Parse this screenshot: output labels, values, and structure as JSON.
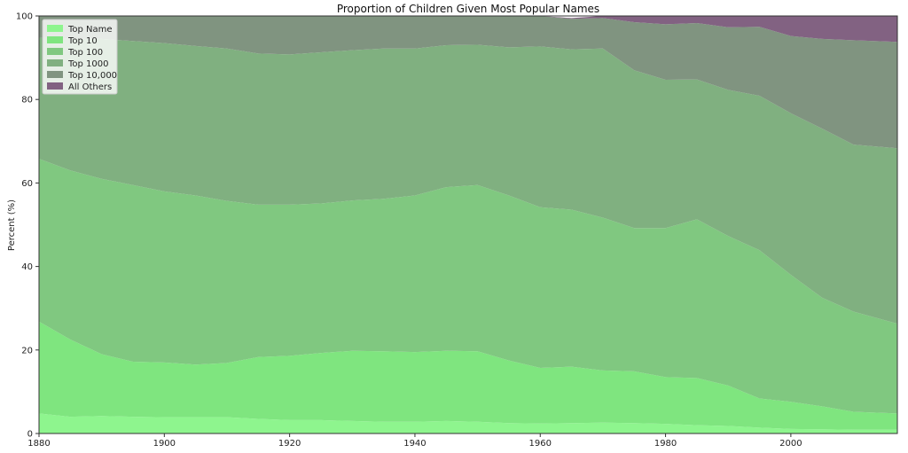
{
  "chart_data": {
    "type": "area",
    "stacked": true,
    "title": "Proportion of Children Given Most Popular Names",
    "xlabel": "",
    "ylabel": "Percent (%)",
    "xlim": [
      1880,
      2017
    ],
    "ylim": [
      0,
      100
    ],
    "x_ticks": [
      1880,
      1900,
      1920,
      1940,
      1960,
      1980,
      2000
    ],
    "y_ticks": [
      0,
      20,
      40,
      60,
      80,
      100
    ],
    "grid": false,
    "legend_position": "top-left",
    "x": [
      1880,
      1885,
      1890,
      1895,
      1900,
      1905,
      1910,
      1915,
      1920,
      1925,
      1930,
      1935,
      1940,
      1945,
      1950,
      1955,
      1960,
      1965,
      1970,
      1975,
      1980,
      1985,
      1990,
      1995,
      2000,
      2005,
      2010,
      2017
    ],
    "series": [
      {
        "name": "Top Name",
        "color": "#8ef58e",
        "values": [
          4.8,
          4.0,
          4.2,
          4.0,
          3.9,
          3.9,
          3.9,
          3.5,
          3.2,
          3.2,
          3.0,
          2.8,
          2.8,
          3.0,
          2.8,
          2.5,
          2.4,
          2.5,
          2.6,
          2.5,
          2.3,
          2.0,
          1.8,
          1.4,
          1.1,
          1.0,
          0.9,
          0.9
        ]
      },
      {
        "name": "Top 10",
        "color": "#7fe57f",
        "values": [
          22.0,
          18.5,
          14.8,
          13.2,
          13.1,
          12.6,
          13.0,
          14.8,
          15.4,
          16.1,
          16.8,
          16.9,
          16.7,
          16.8,
          16.9,
          15.0,
          13.3,
          13.5,
          12.5,
          12.4,
          11.2,
          11.3,
          9.7,
          7.0,
          6.5,
          5.5,
          4.3,
          3.9
        ]
      },
      {
        "name": "Top 100",
        "color": "#80c880",
        "values": [
          39.0,
          40.5,
          42.0,
          42.3,
          41.0,
          40.5,
          38.8,
          36.5,
          36.2,
          35.8,
          36.0,
          36.5,
          37.5,
          39.2,
          39.8,
          39.5,
          38.5,
          37.6,
          36.6,
          34.3,
          35.7,
          38.0,
          35.8,
          35.5,
          30.4,
          26.0,
          24.0,
          21.5
        ]
      },
      {
        "name": "Top 1000",
        "color": "#80b080",
        "values": [
          29.0,
          31.5,
          33.5,
          34.5,
          35.5,
          35.8,
          36.5,
          36.2,
          36.0,
          36.2,
          36.0,
          36.0,
          35.2,
          34.0,
          33.6,
          35.5,
          38.5,
          38.4,
          40.5,
          37.8,
          35.5,
          33.5,
          35.0,
          37.0,
          38.7,
          40.5,
          40.0,
          42.0
        ]
      },
      {
        "name": "Top 10,000",
        "color": "#809480",
        "values": [
          5.2,
          5.5,
          5.5,
          6.0,
          6.5,
          7.2,
          7.8,
          9.0,
          9.2,
          8.7,
          8.2,
          7.8,
          7.8,
          7.0,
          6.9,
          7.5,
          7.3,
          7.3,
          7.3,
          11.5,
          13.3,
          13.5,
          15.0,
          16.5,
          18.5,
          21.5,
          25.0,
          25.5
        ]
      },
      {
        "name": "All Others",
        "color": "#826282",
        "values": [
          0,
          0,
          0,
          0,
          0,
          0,
          0,
          0,
          0,
          0,
          0,
          0,
          0,
          0,
          0,
          0,
          0,
          0.2,
          0.5,
          1.5,
          2.0,
          1.7,
          2.7,
          2.6,
          4.8,
          5.5,
          5.8,
          6.2
        ]
      }
    ]
  }
}
